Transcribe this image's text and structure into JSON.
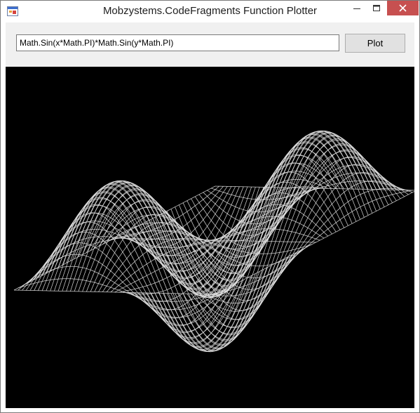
{
  "window": {
    "title": "Mobzystems.CodeFragments Function Plotter"
  },
  "toolbar": {
    "expression_value": "Math.Sin(x*Math.PI)*Math.Sin(y*Math.PI)",
    "plot_label": "Plot"
  },
  "plot": {
    "function": "sin(pi*x)*sin(pi*y)",
    "x_range": [
      -1,
      1
    ],
    "y_range": [
      -1,
      1
    ],
    "grid_lines": 50,
    "line_color": "#e2e2e2",
    "background": "#000000",
    "style": "wireframe"
  },
  "colors": {
    "close_button": "#c75050"
  }
}
